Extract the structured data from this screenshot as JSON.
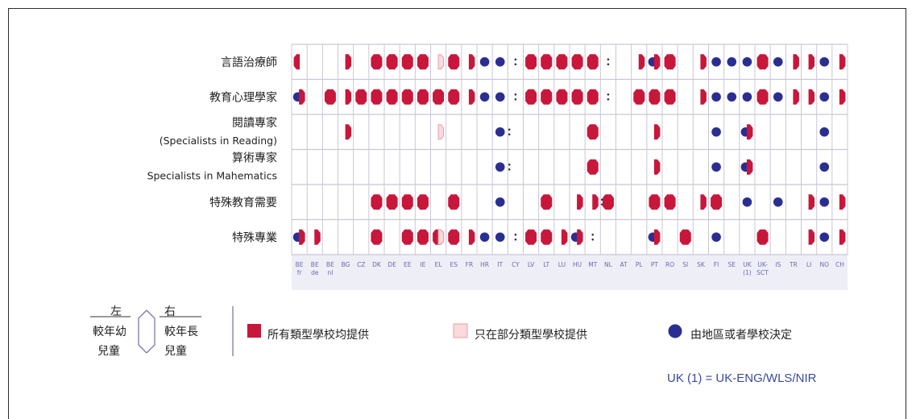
{
  "chart_data": {
    "type": "table",
    "rows": [
      {
        "label": "言語治療師"
      },
      {
        "label": "教育心理學家"
      },
      {
        "label": "閱讀專家",
        "sublabel": "(Specialists in Reading)"
      },
      {
        "label": "算術專家",
        "sublabel": "Specialists in Mahematics"
      },
      {
        "label": "特殊教育需要"
      },
      {
        "label": "特殊專業"
      }
    ],
    "countries": [
      {
        "code": "BE",
        "sub": "fr"
      },
      {
        "code": "BE",
        "sub": "de"
      },
      {
        "code": "BE",
        "sub": "nl"
      },
      {
        "code": "BG"
      },
      {
        "code": "CZ"
      },
      {
        "code": "DK"
      },
      {
        "code": "DE"
      },
      {
        "code": "EE"
      },
      {
        "code": "IE"
      },
      {
        "code": "EL"
      },
      {
        "code": "ES"
      },
      {
        "code": "FR"
      },
      {
        "code": "HR"
      },
      {
        "code": "IT"
      },
      {
        "code": "CY"
      },
      {
        "code": "LV"
      },
      {
        "code": "LT"
      },
      {
        "code": "LU"
      },
      {
        "code": "HU"
      },
      {
        "code": "MT"
      },
      {
        "code": "NL"
      },
      {
        "code": "AT"
      },
      {
        "code": "PL"
      },
      {
        "code": "PT"
      },
      {
        "code": "RO"
      },
      {
        "code": "SI"
      },
      {
        "code": "SK"
      },
      {
        "code": "FI"
      },
      {
        "code": "SE"
      },
      {
        "code": "UK",
        "sub": "(1)"
      },
      {
        "code": "UK-",
        "sub": "SCT"
      },
      {
        "code": "IS"
      },
      {
        "code": "TR"
      },
      {
        "code": "LI"
      },
      {
        "code": "NO"
      },
      {
        "code": "CH"
      }
    ],
    "symbol_codes": {
      "A": "red - all school types",
      "P": "pink - some school types",
      "D": "blue - local/school decision",
      "L": "left - younger children",
      "R": "right - older children",
      "B": "both - all ages",
      ":": "data not available"
    },
    "cells": [
      [
        "A L",
        "",
        "",
        "A R",
        "",
        "A B",
        "A B",
        "A B",
        "A B",
        "P R",
        "A B",
        "A R",
        "D",
        "D",
        ":",
        "A B",
        "A B",
        "A B",
        "A B",
        "A B",
        ":",
        "",
        "A R",
        "D L|A R",
        "A B",
        "",
        "A R",
        "D",
        "D",
        "D",
        "A B",
        "D",
        "A R",
        "A R",
        "D",
        "A R"
      ],
      [
        "D L|A R",
        "",
        "A B",
        "A R",
        "A B",
        "A B",
        "A B",
        "A B",
        "A B",
        "A B",
        "A B",
        "A R",
        "D",
        "D",
        ":",
        "A B",
        "A B",
        "A B",
        "A B",
        "A B",
        ":",
        "",
        "A B",
        "A B",
        "A B",
        "",
        "A R",
        "D",
        "D",
        "D",
        "A B",
        "D",
        "A R",
        "A R",
        "D",
        "A R"
      ],
      [
        "",
        "",
        "",
        "A R",
        "",
        "",
        "",
        "",
        "",
        "P R",
        "",
        "",
        "",
        "D :",
        "",
        "",
        "",
        "",
        "",
        "A B",
        "",
        "",
        "",
        "A R",
        "",
        "",
        "",
        "D",
        "",
        "D|A R",
        "",
        "",
        "",
        "",
        "D",
        ""
      ],
      [
        "",
        "",
        "",
        "",
        "",
        "",
        "",
        "",
        "",
        "",
        "",
        "",
        "",
        "D :",
        "",
        "",
        "",
        "",
        "",
        "A B",
        "",
        "",
        "",
        "A R",
        "",
        "",
        "",
        "D",
        "",
        "D|A R",
        "",
        "",
        "",
        "",
        "D",
        ""
      ],
      [
        "",
        "",
        "",
        "",
        "",
        "A B",
        "A B",
        "A B",
        "A B",
        "",
        "A B",
        "",
        "",
        "D",
        "",
        "",
        "A B",
        "",
        "A R",
        "A R :",
        "A B",
        "",
        "",
        "A B",
        "A B",
        "",
        "A R",
        "A B",
        "",
        "D",
        "",
        "D",
        "",
        "A R",
        "D",
        "A R"
      ],
      [
        "D L|A R",
        "A R",
        "",
        "",
        "",
        "A B",
        "",
        "A B",
        "A B",
        "A B|P",
        "A B",
        "A R",
        "D",
        "D",
        ":",
        "A B",
        "A B",
        "A R",
        "D L|A R",
        ":",
        "",
        "",
        "",
        "D L|A R",
        "",
        "A B",
        "",
        "D",
        "",
        "",
        "A B",
        "",
        "",
        "A R",
        "D",
        "A R"
      ]
    ],
    "legend": [
      {
        "color": "#c8173a",
        "label": "所有類型學校均提供"
      },
      {
        "color": "#fbd9dc",
        "label": "只在部分類型學校提供"
      },
      {
        "color": "#2b2e91",
        "label": "由地區或者學校決定"
      }
    ],
    "age_key": {
      "left": "左",
      "left_desc_1": "較年幼",
      "left_desc_2": "兒童",
      "right": "右",
      "right_desc_1": "較年長",
      "right_desc_2": "兒童"
    },
    "note": "UK (1) = UK-ENG/WLS/NIR",
    "colors": {
      "red": "#c8173a",
      "pink": "#fbd9dc",
      "blue": "#2b2e91",
      "grid": "#c8c8d8",
      "header_bg": "#eeeef6",
      "text_country": "#6a6ab0"
    }
  }
}
